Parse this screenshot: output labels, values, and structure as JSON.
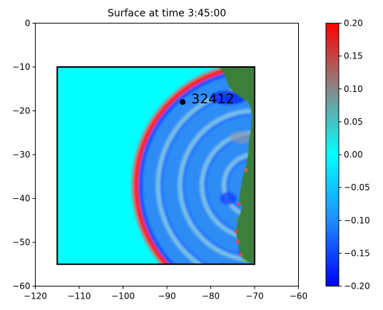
{
  "chart_data": {
    "type": "heatmap",
    "title": "Surface at time 3:45:00",
    "xlabel": "",
    "ylabel": "",
    "xlim": [
      -120,
      -60
    ],
    "ylim": [
      -60,
      0
    ],
    "x_ticks": [
      "−120",
      "−110",
      "−100",
      "−90",
      "−80",
      "−70",
      "−60"
    ],
    "y_ticks": [
      "0",
      "−10",
      "−20",
      "−30",
      "−40",
      "−50",
      "−60"
    ],
    "x_tick_values": [
      -120,
      -110,
      -100,
      -90,
      -80,
      -70,
      -60
    ],
    "y_tick_values": [
      0,
      -10,
      -20,
      -30,
      -40,
      -50,
      -60
    ],
    "domain_box": {
      "x": [
        -115,
        -70
      ],
      "y": [
        -55,
        -10
      ]
    },
    "gauge": {
      "label": "32412",
      "x": -86.4,
      "y": -18.0
    },
    "colorbar": {
      "min": -0.2,
      "max": 0.2,
      "ticks": [
        "0.20",
        "0.15",
        "0.10",
        "0.05",
        "0.00",
        "−0.05",
        "−0.10",
        "−0.15",
        "−0.20"
      ],
      "tick_values": [
        0.2,
        0.15,
        0.1,
        0.05,
        0.0,
        -0.05,
        -0.1,
        -0.15,
        -0.2
      ],
      "colors": {
        "low": "#0000ff",
        "mid": "#00ffff",
        "high": "#ff0000"
      }
    },
    "wavefront": {
      "center": [
        -70,
        -37
      ],
      "leading_radius_deg": 27,
      "trailing_radii_deg": [
        22,
        17,
        12,
        7
      ],
      "amplitude_leading": 0.2,
      "amplitude_trough": -0.15
    },
    "land_color": "#3a7f3a",
    "grid": false
  }
}
